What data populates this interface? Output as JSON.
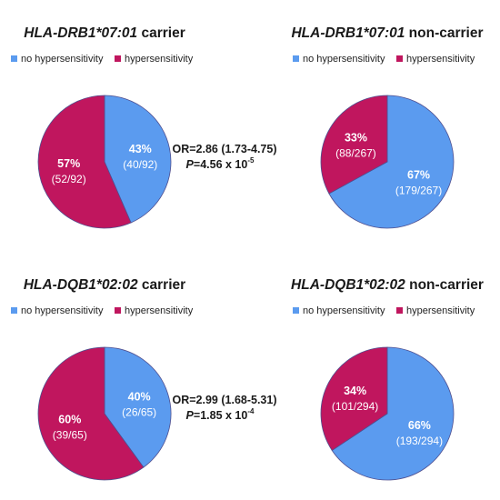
{
  "colors": {
    "no_hypersensitivity": "#5b9bef",
    "hypersensitivity": "#c0165e",
    "outline": "#4f4f8f"
  },
  "chart_data": [
    {
      "type": "pie",
      "title_gene": "HLA-DRB1*07:01",
      "title_suffix": " carrier",
      "legend": [
        "no hypersensitivity",
        "hypersensitivity"
      ],
      "slices": [
        {
          "label": "no hypersensitivity",
          "value": 40,
          "percent": "43%",
          "fraction": "(40/92)"
        },
        {
          "label": "hypersensitivity",
          "value": 52,
          "percent": "57%",
          "fraction": "(52/92)"
        }
      ]
    },
    {
      "type": "pie",
      "title_gene": "HLA-DRB1*07:01",
      "title_suffix": " non-carrier",
      "legend": [
        "no hypersensitivity",
        "hypersensitivity"
      ],
      "slices": [
        {
          "label": "no hypersensitivity",
          "value": 179,
          "percent": "67%",
          "fraction": "(179/267)"
        },
        {
          "label": "hypersensitivity",
          "value": 88,
          "percent": "33%",
          "fraction": "(88/267)"
        }
      ]
    },
    {
      "type": "pie",
      "title_gene": "HLA-DQB1*02:02",
      "title_suffix": " carrier",
      "legend": [
        "no hypersensitivity",
        "hypersensitivity"
      ],
      "slices": [
        {
          "label": "no hypersensitivity",
          "value": 26,
          "percent": "40%",
          "fraction": "(26/65)"
        },
        {
          "label": "hypersensitivity",
          "value": 39,
          "percent": "60%",
          "fraction": "(39/65)"
        }
      ]
    },
    {
      "type": "pie",
      "title_gene": "HLA-DQB1*02:02",
      "title_suffix": " non-carrier",
      "legend": [
        "no hypersensitivity",
        "hypersensitivity"
      ],
      "slices": [
        {
          "label": "no hypersensitivity",
          "value": 193,
          "percent": "66%",
          "fraction": "(193/294)"
        },
        {
          "label": "hypersensitivity",
          "value": 101,
          "percent": "34%",
          "fraction": "(101/294)"
        }
      ]
    }
  ],
  "stats": [
    {
      "or_text": "OR=2.86 (1.73-4.75)",
      "p_label": "P",
      "p_text": "=4.56 x 10",
      "p_exp": "-5"
    },
    {
      "or_text": "OR=2.99 (1.68-5.31)",
      "p_label": "P",
      "p_text": "=1.85 x 10",
      "p_exp": "-4"
    }
  ]
}
